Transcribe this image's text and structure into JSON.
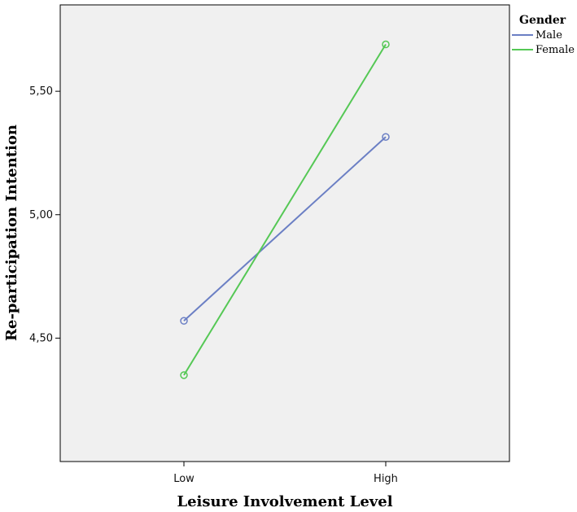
{
  "chart_data": {
    "type": "line",
    "categories": [
      "Low",
      "High"
    ],
    "series": [
      {
        "name": "Male",
        "values": [
          4.57,
          5.315
        ],
        "color": "#6B7FC4"
      },
      {
        "name": "Female",
        "values": [
          4.35,
          5.69
        ],
        "color": "#55C855"
      }
    ],
    "xlabel": "Leisure Involvement Level",
    "ylabel": "Re-participation Intention",
    "ylim": [
      4.0,
      5.85
    ],
    "yticks": [
      4.5,
      5.0,
      5.5
    ],
    "ytick_labels": [
      "4,50",
      "5,00",
      "5,50"
    ],
    "legend": {
      "title": "Gender",
      "placement": "top-right"
    },
    "grid": false,
    "plot_background": "#F0F0F0",
    "marker": "circle"
  }
}
